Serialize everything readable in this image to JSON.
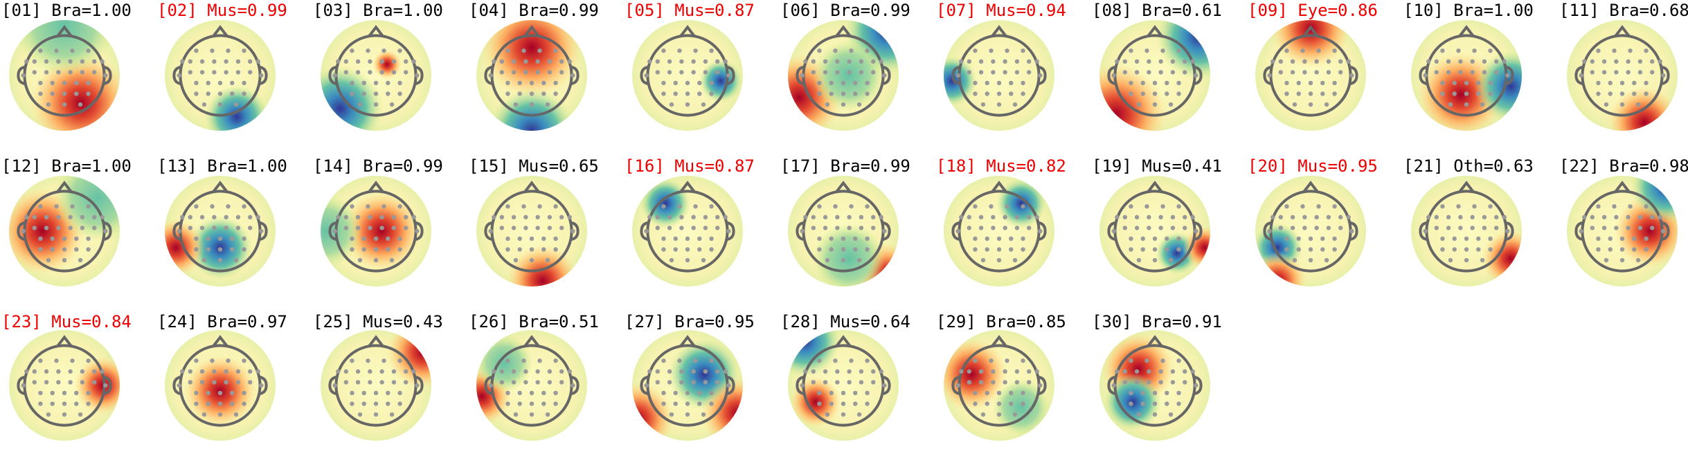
{
  "components": [
    {
      "label": "[01] Bra=1.00",
      "color": "#000000"
    },
    {
      "label": "[02] Mus=0.99",
      "color": "#ee0000"
    },
    {
      "label": "[03] Bra=1.00",
      "color": "#000000"
    },
    {
      "label": "[04] Bra=0.99",
      "color": "#000000"
    },
    {
      "label": "[05] Mus=0.87",
      "color": "#ee0000"
    },
    {
      "label": "[06] Bra=0.99",
      "color": "#000000"
    },
    {
      "label": "[07] Mus=0.94",
      "color": "#ee0000"
    },
    {
      "label": "[08] Bra=0.61",
      "color": "#000000"
    },
    {
      "label": "[09] Eye=0.86",
      "color": "#ee0000"
    },
    {
      "label": "[10] Bra=1.00",
      "color": "#000000"
    },
    {
      "label": "[11] Bra=0.68",
      "color": "#000000"
    },
    {
      "label": "[12] Bra=1.00",
      "color": "#000000"
    },
    {
      "label": "[13] Bra=1.00",
      "color": "#000000"
    },
    {
      "label": "[14] Bra=0.99",
      "color": "#000000"
    },
    {
      "label": "[15] Mus=0.65",
      "color": "#000000"
    },
    {
      "label": "[16] Mus=0.87",
      "color": "#ee0000"
    },
    {
      "label": "[17] Bra=0.99",
      "color": "#000000"
    },
    {
      "label": "[18] Mus=0.82",
      "color": "#ee0000"
    },
    {
      "label": "[19] Mus=0.41",
      "color": "#000000"
    },
    {
      "label": "[20] Mus=0.95",
      "color": "#ee0000"
    },
    {
      "label": "[21] Oth=0.63",
      "color": "#000000"
    },
    {
      "label": "[22] Bra=0.98",
      "color": "#000000"
    },
    {
      "label": "[23] Mus=0.84",
      "color": "#ee0000"
    },
    {
      "label": "[24] Bra=0.97",
      "color": "#000000"
    },
    {
      "label": "[25] Mus=0.43",
      "color": "#000000"
    },
    {
      "label": "[26] Bra=0.51",
      "color": "#000000"
    },
    {
      "label": "[27] Bra=0.95",
      "color": "#000000"
    },
    {
      "label": "[28] Mus=0.64",
      "color": "#000000"
    },
    {
      "label": "[29] Bra=0.85",
      "color": "#000000"
    },
    {
      "label": "[30] Bra=0.91",
      "color": "#000000"
    }
  ]
}
